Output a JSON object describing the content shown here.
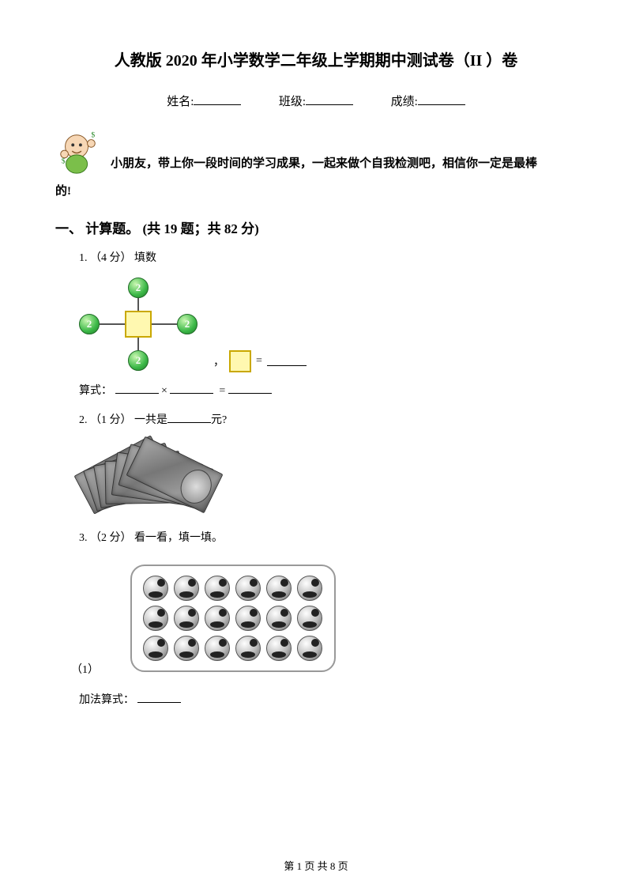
{
  "title": "人教版 2020 年小学数学二年级上学期期中测试卷（II ）卷",
  "info": {
    "name_label": "姓名:",
    "class_label": "班级:",
    "score_label": "成绩:"
  },
  "encourage_line1": "小朋友，带上你一段时间的学习成果，一起来做个自我检测吧，相信你一定是最棒",
  "encourage_line2": "的!",
  "section1": {
    "heading": "一、 计算题。  (共 19 题；共 82 分)"
  },
  "q1": {
    "number": "1.  （4 分）  填数",
    "circle_value": "2",
    "eq_prefix": "，",
    "eq_eq": "=",
    "formula_prefix": "算式：",
    "formula_times": "×",
    "formula_eq": "="
  },
  "q2": {
    "number": "2.  （1 分）  一共是",
    "tail": "元?",
    "bill_count": 7
  },
  "q3": {
    "number": "3.  （2 分）  看一看，填一填。",
    "cols": 6,
    "rows": 3,
    "sub": "（1）",
    "add_label": "加法算式："
  },
  "footer": {
    "text": "第 1 页 共 8 页"
  },
  "colors": {
    "circle_green_light": "#c8f7b0",
    "circle_green_mid": "#3bb847",
    "circle_green_dark": "#237a2b",
    "square_fill": "#fff8b0",
    "square_border": "#c9a800"
  }
}
